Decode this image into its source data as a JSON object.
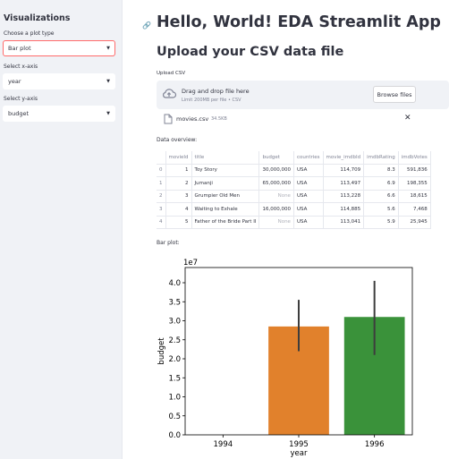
{
  "sidebar": {
    "title": "Visualizations",
    "plot_type_label": "Choose a plot type",
    "plot_type_value": "Bar plot",
    "xaxis_label": "Select x-axis",
    "xaxis_value": "year",
    "yaxis_label": "Select y-axis",
    "yaxis_value": "budget"
  },
  "main": {
    "title": "Hello, World! EDA Streamlit App",
    "subtitle": "Upload your CSV data file",
    "upload_label": "Upload CSV",
    "dropzone_main": "Drag and drop file here",
    "dropzone_sub": "Limit 200MB per file • CSV",
    "browse_label": "Browse files",
    "file_name": "movies.csv",
    "file_size": "34.5KB",
    "data_overview_label": "Data overview:",
    "bar_plot_label": "Bar plot:"
  },
  "table": {
    "columns": [
      "",
      "movieId",
      "title",
      "budget",
      "countries",
      "movie_imdbId",
      "imdbRating",
      "imdbVotes"
    ],
    "rows": [
      [
        "0",
        "1",
        "Toy Story",
        "30,000,000",
        "USA",
        "114,709",
        "8.3",
        "591,836"
      ],
      [
        "1",
        "2",
        "Jumanji",
        "65,000,000",
        "USA",
        "113,497",
        "6.9",
        "198,355"
      ],
      [
        "2",
        "3",
        "Grumpier Old Men",
        "None",
        "USA",
        "113,228",
        "6.6",
        "18,615"
      ],
      [
        "3",
        "4",
        "Waiting to Exhale",
        "16,000,000",
        "USA",
        "114,885",
        "5.6",
        "7,468"
      ],
      [
        "4",
        "5",
        "Father of the Bride Part II",
        "None",
        "USA",
        "113,041",
        "5.9",
        "25,945"
      ]
    ]
  },
  "colors": {
    "accent": "#ff4b4b",
    "sidebar_bg": "#f0f2f6",
    "bar_1995": "#e1812c",
    "bar_1996": "#3a923a"
  },
  "chart_data": {
    "type": "bar",
    "categories": [
      "1994",
      "1995",
      "1996"
    ],
    "values": [
      null,
      2.85,
      3.1
    ],
    "error_low": [
      null,
      2.2,
      2.1
    ],
    "error_high": [
      null,
      3.55,
      4.05
    ],
    "xlabel": "year",
    "ylabel": "budget",
    "ylim": [
      0,
      4.4
    ],
    "yticks": [
      "0.0",
      "0.5",
      "1.0",
      "1.5",
      "2.0",
      "2.5",
      "3.0",
      "3.5",
      "4.0"
    ],
    "scale_label": "1e7",
    "grid": false
  }
}
